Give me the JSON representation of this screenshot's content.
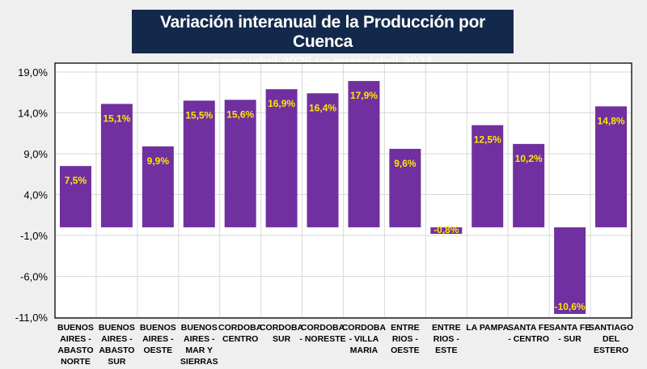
{
  "chart_data": {
    "type": "bar",
    "title": "Variación interanual de la Producción por Cuenca",
    "subtitle": "enero/abril 2025 vs enero/abril 2024",
    "xlabel": "",
    "ylabel": "",
    "ylim": [
      -11,
      19
    ],
    "yticks": [
      19,
      14,
      9,
      4,
      -1,
      -6,
      -11
    ],
    "ytick_labels": [
      "19,0%",
      "14,0%",
      "9,0%",
      "4,0%",
      "-1,0%",
      "-6,0%",
      "-11,0%"
    ],
    "grid": true,
    "categories": [
      [
        "BUENOS",
        "AIRES -",
        "ABASTO",
        "NORTE"
      ],
      [
        "BUENOS",
        "AIRES -",
        "ABASTO",
        "SUR"
      ],
      [
        "BUENOS",
        "AIRES -",
        "OESTE"
      ],
      [
        "BUENOS",
        "AIRES -",
        "MAR Y",
        "SIERRAS"
      ],
      [
        "CORDOBA",
        "CENTRO"
      ],
      [
        "CORDOBA",
        "SUR"
      ],
      [
        "CORDOBA",
        "- NORESTE"
      ],
      [
        "CORDOBA",
        "- VILLA",
        "MARIA"
      ],
      [
        "ENTRE",
        "RIOS -",
        "OESTE"
      ],
      [
        "ENTRE",
        "RIOS -",
        "ESTE"
      ],
      [
        "LA PAMPA"
      ],
      [
        "SANTA FE",
        "- CENTRO"
      ],
      [
        "SANTA FE",
        "- SUR"
      ],
      [
        "SANTIAGO",
        "DEL",
        "ESTERO"
      ]
    ],
    "values": [
      7.5,
      15.1,
      9.9,
      15.5,
      15.6,
      16.9,
      16.4,
      17.9,
      9.6,
      -0.8,
      12.5,
      10.2,
      -10.6,
      14.8
    ],
    "data_labels": [
      "7,5%",
      "15,1%",
      "9,9%",
      "15,5%",
      "15,6%",
      "16,9%",
      "16,4%",
      "17,9%",
      "9,6%",
      "-0,8%",
      "12,5%",
      "10,2%",
      "-10,6%",
      "14,8%"
    ],
    "colors": {
      "bar": "#7030a0",
      "label": "#ffe600",
      "title_bg": "#13294b"
    }
  }
}
